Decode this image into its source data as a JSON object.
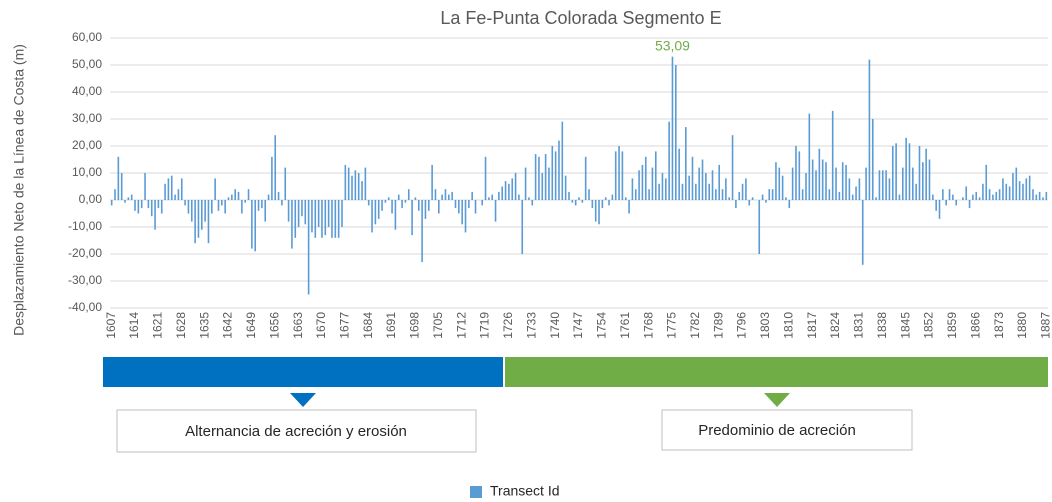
{
  "chart_data": {
    "type": "bar",
    "title": "La Fe-Punta Colorada Segmento E",
    "y_label": "Desplazamiento Neto de la Línea de Costa (m)",
    "series": [
      {
        "name": "Transect Id",
        "color": "#5b9bd5",
        "values": [
          -2,
          4,
          16,
          10,
          -1,
          1,
          2,
          -4,
          -5,
          -3,
          10,
          -3,
          -6,
          -11,
          -3,
          -5,
          6,
          8,
          9,
          2,
          4,
          8,
          -2,
          -5,
          -8,
          -16,
          -14,
          -11,
          -8,
          -16,
          -5,
          8,
          -4,
          -2,
          -5,
          1,
          2,
          4,
          3,
          -5,
          -1,
          4,
          -18,
          -19,
          -4,
          -3,
          -8,
          2,
          16,
          24,
          3,
          -2,
          12,
          -8,
          -18,
          -14,
          -10,
          -6,
          -9,
          -35,
          -12,
          -14,
          -10,
          -14,
          -13,
          -10,
          -14,
          -14,
          -14,
          -10,
          13,
          12,
          9,
          11,
          10,
          7,
          12,
          -2,
          -12,
          -9,
          -7,
          -4,
          -1,
          1,
          -5,
          -11,
          2,
          -3,
          -1,
          4,
          -13,
          1,
          -4,
          -23,
          -7,
          -4,
          13,
          4,
          -5,
          2,
          4,
          2,
          3,
          -3,
          -5,
          -9,
          -12,
          -3,
          3,
          -5,
          0,
          -2,
          16,
          1,
          2,
          -8,
          3,
          5,
          7,
          6,
          8,
          10,
          2,
          -20,
          12,
          1,
          -2,
          17,
          16,
          10,
          17,
          12,
          20,
          18,
          22,
          29,
          9,
          3,
          -1,
          -2,
          1,
          -1,
          16,
          4,
          -3,
          -8,
          -9,
          -3,
          1,
          -2,
          2,
          18,
          20,
          18,
          1,
          -5,
          8,
          4,
          11,
          13,
          16,
          4,
          12,
          18,
          6,
          10,
          8,
          29,
          53.09,
          50,
          19,
          6,
          27,
          9,
          16,
          6,
          12,
          15,
          10,
          6,
          11,
          4,
          13,
          4,
          8,
          1,
          24,
          -3,
          3,
          6,
          8,
          -2,
          1,
          0,
          -20,
          2,
          -1,
          4,
          4,
          14,
          12,
          9,
          1,
          -3,
          12,
          20,
          18,
          4,
          10,
          32,
          15,
          11,
          19,
          15,
          14,
          4,
          33,
          12,
          3,
          14,
          13,
          8,
          2,
          5,
          8,
          -24,
          12,
          52,
          30,
          1,
          11,
          11,
          11,
          8,
          20,
          21,
          2,
          12,
          23,
          21,
          12,
          6,
          20,
          14,
          19,
          15,
          2,
          -4,
          -7,
          4,
          -2,
          4,
          2,
          -2,
          0,
          1,
          5,
          -3,
          2,
          3,
          1,
          6,
          13,
          4,
          2,
          3,
          4,
          8,
          6,
          5,
          10,
          12,
          7,
          6,
          8,
          9,
          4,
          2,
          3,
          1,
          3
        ],
        "value_labels": [
          null,
          null,
          null,
          null,
          null,
          null,
          null,
          null,
          null,
          null,
          null,
          null,
          null,
          null,
          null,
          null,
          null,
          null,
          null,
          null,
          null,
          null,
          null,
          null,
          null,
          null,
          null,
          null,
          null,
          null,
          null,
          null,
          null,
          null,
          null,
          null,
          null,
          null,
          null,
          null,
          null,
          null,
          null,
          null,
          null,
          null,
          null,
          null,
          null,
          null,
          null,
          null,
          null,
          null,
          null,
          null,
          null,
          null,
          null,
          null,
          null,
          null,
          null,
          null,
          null,
          null,
          null,
          null,
          null,
          null,
          null,
          null,
          null,
          null,
          null,
          null,
          null,
          null,
          null,
          null,
          null,
          null,
          null,
          null,
          null,
          null,
          null,
          null,
          null,
          null,
          null,
          null,
          null,
          null,
          null,
          null,
          null,
          null,
          null,
          null,
          null,
          null,
          null,
          null,
          null,
          null,
          null,
          null,
          null,
          null,
          null,
          null,
          null,
          null,
          null,
          null,
          null,
          null,
          null,
          null,
          null,
          null,
          null,
          null,
          null,
          null,
          null,
          null,
          null,
          null,
          null,
          null,
          null,
          null,
          null,
          null,
          null,
          null,
          null,
          null,
          null,
          null,
          null,
          null,
          null,
          null,
          null,
          null,
          null,
          null,
          null,
          null,
          null,
          null,
          null,
          null,
          null,
          null,
          null,
          null,
          null,
          null,
          null,
          null,
          null,
          null,
          null,
          null,
          "53,09",
          null,
          null,
          null,
          null,
          null,
          null,
          null,
          null,
          null,
          null,
          null,
          null,
          null,
          null,
          null,
          null,
          null,
          null,
          null,
          null,
          null,
          null,
          null,
          null,
          null,
          null,
          null,
          null,
          null,
          null,
          null,
          null,
          null,
          null,
          null,
          null,
          null,
          null,
          null,
          null,
          null,
          null,
          null,
          null,
          null,
          null,
          null,
          null,
          null,
          null,
          null,
          null,
          null,
          null,
          null,
          null,
          null,
          null,
          null,
          null,
          null,
          null,
          null,
          null,
          null,
          null,
          null,
          null,
          null,
          null,
          null,
          null,
          null,
          null,
          null,
          null,
          null,
          null,
          null,
          null,
          null,
          null,
          null,
          null,
          null,
          null,
          null,
          null,
          null,
          null,
          null,
          null,
          null,
          null,
          null,
          null,
          null,
          null,
          null,
          null,
          null,
          null,
          null,
          null,
          null,
          null,
          null,
          null,
          null,
          null,
          null,
          null
        ],
        "label_color": "#70ad47"
      }
    ],
    "categories": [
      "1607",
      null,
      null,
      null,
      null,
      null,
      null,
      "1614",
      null,
      null,
      null,
      null,
      null,
      null,
      "1621",
      null,
      null,
      null,
      null,
      null,
      null,
      "1628",
      null,
      null,
      null,
      null,
      null,
      null,
      "1635",
      null,
      null,
      null,
      null,
      null,
      null,
      "1642",
      null,
      null,
      null,
      null,
      null,
      null,
      "1649",
      null,
      null,
      null,
      null,
      null,
      null,
      "1656",
      null,
      null,
      null,
      null,
      null,
      null,
      "1663",
      null,
      null,
      null,
      null,
      null,
      null,
      "1670",
      null,
      null,
      null,
      null,
      null,
      null,
      "1677",
      null,
      null,
      null,
      null,
      null,
      null,
      "1684",
      null,
      null,
      null,
      null,
      null,
      null,
      "1691",
      null,
      null,
      null,
      null,
      null,
      null,
      "1698",
      null,
      null,
      null,
      null,
      null,
      null,
      "1705",
      null,
      null,
      null,
      null,
      null,
      null,
      "1712",
      null,
      null,
      null,
      null,
      null,
      null,
      "1719",
      null,
      null,
      null,
      null,
      null,
      null,
      "1726",
      null,
      null,
      null,
      null,
      null,
      null,
      "1733",
      null,
      null,
      null,
      null,
      null,
      null,
      "1740",
      null,
      null,
      null,
      null,
      null,
      null,
      "1747",
      null,
      null,
      null,
      null,
      null,
      null,
      "1754",
      null,
      null,
      null,
      null,
      null,
      null,
      "1761",
      null,
      null,
      null,
      null,
      null,
      null,
      "1768",
      null,
      null,
      null,
      null,
      null,
      null,
      "1775",
      null,
      null,
      null,
      null,
      null,
      null,
      "1782",
      null,
      null,
      null,
      null,
      null,
      null,
      "1789",
      null,
      null,
      null,
      null,
      null,
      null,
      "1796",
      null,
      null,
      null,
      null,
      null,
      null,
      "1803",
      null,
      null,
      null,
      null,
      null,
      null,
      "1810",
      null,
      null,
      null,
      null,
      null,
      null,
      "1817",
      null,
      null,
      null,
      null,
      null,
      null,
      "1824",
      null,
      null,
      null,
      null,
      null,
      null,
      "1831",
      null,
      null,
      null,
      null,
      null,
      null,
      "1838",
      null,
      null,
      null,
      null,
      null,
      null,
      "1845",
      null,
      null,
      null,
      null,
      null,
      null,
      "1852",
      null,
      null,
      null,
      null,
      null,
      null,
      "1859",
      null,
      null,
      null,
      null,
      null,
      null,
      "1866",
      null,
      null,
      null,
      null,
      null,
      null,
      "1873",
      null,
      null,
      null,
      null,
      null,
      null,
      "1880",
      null,
      null,
      null,
      null,
      null,
      null,
      "1887"
    ],
    "ylim": [
      -40,
      60
    ],
    "yticks": [
      {
        "value": -40,
        "label": "-40,00"
      },
      {
        "value": -30,
        "label": "-30,00"
      },
      {
        "value": -20,
        "label": "-20,00"
      },
      {
        "value": -10,
        "label": "-10,00"
      },
      {
        "value": 0,
        "label": "0,00"
      },
      {
        "value": 10,
        "label": "10,00"
      },
      {
        "value": 20,
        "label": "20,00"
      },
      {
        "value": 30,
        "label": "30,00"
      },
      {
        "value": 40,
        "label": "40,00"
      },
      {
        "value": 50,
        "label": "50,00"
      },
      {
        "value": 60,
        "label": "60,00"
      }
    ],
    "grid": true,
    "legend": "bottom",
    "annotations": [
      {
        "text": "Alternancia de acreción y erosión",
        "color": "#0070c0"
      },
      {
        "text": "Predominio de acreción",
        "color": "#70ad47"
      }
    ]
  }
}
